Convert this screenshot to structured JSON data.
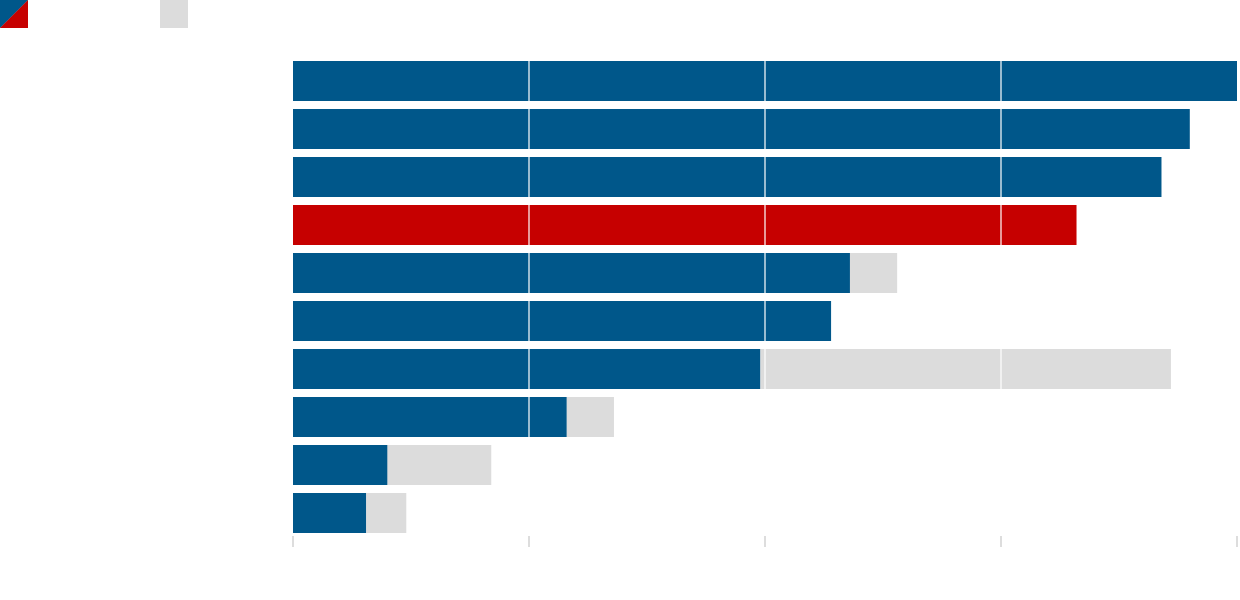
{
  "chart_data": {
    "type": "bar",
    "orientation": "horizontal",
    "stacked": true,
    "categories": [
      "",
      "",
      "",
      "",
      "",
      "",
      "",
      "",
      "",
      ""
    ],
    "series": [
      {
        "color": "#00578a",
        "highlight_color": "#c60000",
        "highlight_index": 3,
        "values": [
          4.0,
          3.8,
          3.68,
          3.32,
          2.36,
          2.28,
          1.98,
          1.16,
          0.4,
          0.31
        ]
      },
      {
        "color": "#dcdcdc",
        "values": [
          0,
          0,
          0,
          0,
          0.2,
          0,
          1.74,
          0.2,
          0.44,
          0.17
        ]
      }
    ],
    "xlim": [
      0,
      4
    ],
    "x_gridlines": [
      1,
      2,
      3
    ],
    "x_ticks": [
      0,
      1,
      2,
      3,
      4
    ],
    "grid": true,
    "legend": {
      "placement": "top-left",
      "entries": [
        {
          "swatch": "split",
          "colors": [
            "#00578a",
            "#c60000"
          ],
          "label": ""
        },
        {
          "swatch": "solid",
          "colors": [
            "#dcdcdc"
          ],
          "label": ""
        }
      ]
    }
  }
}
